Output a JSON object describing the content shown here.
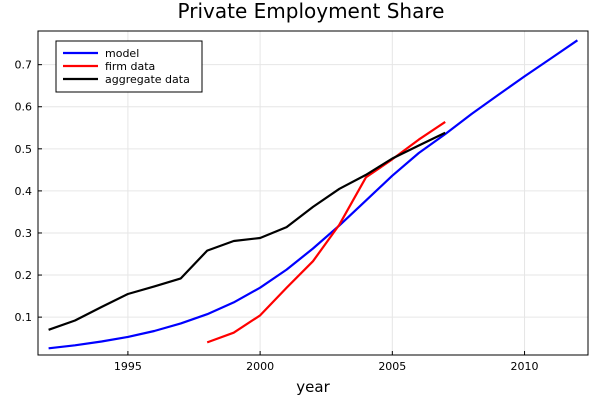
{
  "chart_data": {
    "type": "line",
    "title": "Private Employment Share",
    "xlabel": "year",
    "ylabel": "",
    "xlim": [
      1991.6,
      2012.4
    ],
    "ylim": [
      0.01,
      0.78
    ],
    "xticks": [
      1995,
      2000,
      2005,
      2010
    ],
    "yticks": [
      0.1,
      0.2,
      0.3,
      0.4,
      0.5,
      0.6,
      0.7
    ],
    "grid": true,
    "legend_position": "top-left",
    "series": [
      {
        "name": "model",
        "color": "#0000ff",
        "x": [
          1992,
          1993,
          1994,
          1995,
          1996,
          1997,
          1998,
          1999,
          2000,
          2001,
          2002,
          2003,
          2004,
          2005,
          2006,
          2007,
          2008,
          2009,
          2010,
          2011,
          2012
        ],
        "y": [
          0.026,
          0.033,
          0.042,
          0.053,
          0.067,
          0.085,
          0.107,
          0.135,
          0.17,
          0.213,
          0.263,
          0.318,
          0.377,
          0.436,
          0.49,
          0.535,
          0.583,
          0.628,
          0.672,
          0.715,
          0.758
        ]
      },
      {
        "name": "firm data",
        "color": "#ff0000",
        "x": [
          1998,
          1999,
          2000,
          2001,
          2002,
          2003,
          2004,
          2005,
          2006,
          2007
        ],
        "y": [
          0.04,
          0.063,
          0.104,
          0.17,
          0.233,
          0.32,
          0.432,
          0.475,
          0.522,
          0.564
        ]
      },
      {
        "name": "aggregate data",
        "color": "#000000",
        "x": [
          1992,
          1993,
          1994,
          1995,
          1996,
          1997,
          1998,
          1999,
          2000,
          2001,
          2002,
          2003,
          2004,
          2005,
          2006,
          2007
        ],
        "y": [
          0.07,
          0.092,
          0.124,
          0.155,
          0.173,
          0.192,
          0.258,
          0.281,
          0.288,
          0.314,
          0.362,
          0.405,
          0.438,
          0.477,
          0.508,
          0.538
        ]
      }
    ]
  }
}
